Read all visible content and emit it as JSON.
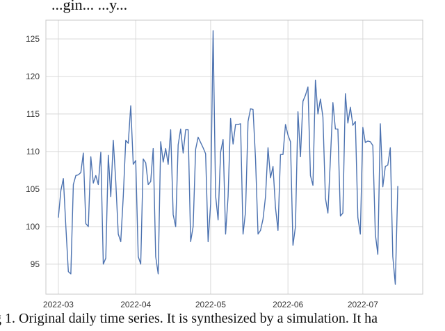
{
  "header_fragment": "...gin... ...y...",
  "caption": "g 1. Original daily time series. It is synthesized by a simulation. It ha",
  "chart_data": {
    "type": "line",
    "title": "",
    "xlabel": "",
    "ylabel": "",
    "x_tick_labels": [
      "2022-03",
      "2022-04",
      "2022-05",
      "2022-06",
      "2022-07"
    ],
    "x_tick_dates": [
      "2022-03-01",
      "2022-04-01",
      "2022-05-01",
      "2022-06-01",
      "2022-07-01"
    ],
    "y_ticks": [
      95,
      100,
      105,
      110,
      115,
      120,
      125
    ],
    "xlim": [
      "2022-02-24",
      "2022-07-25"
    ],
    "ylim": [
      91.0,
      127.5
    ],
    "grid": true,
    "line_color": "#4c72b0",
    "series": [
      {
        "x_start": "2022-03-01",
        "frequency": "daily",
        "values": [
          101.2,
          104.8,
          106.4,
          100.0,
          94.0,
          93.7,
          105.6,
          106.8,
          106.9,
          107.2,
          109.8,
          100.4,
          100.0,
          109.3,
          105.8,
          106.8,
          105.6,
          109.9,
          95.0,
          95.8,
          109.5,
          104.0,
          111.5,
          106.0,
          99.0,
          98.0,
          104.0,
          111.5,
          111.1,
          116.1,
          108.3,
          108.8,
          96.0,
          95.0,
          109.0,
          108.5,
          105.6,
          106.0,
          110.4,
          96.0,
          93.7,
          111.3,
          108.6,
          110.4,
          108.3,
          112.9,
          101.6,
          100.0,
          110.9,
          113.0,
          109.8,
          112.9,
          112.9,
          98.0,
          100.0,
          110.3,
          111.9,
          111.2,
          110.5,
          109.7,
          98.0,
          103.0,
          126.1,
          104.1,
          100.9,
          109.9,
          111.6,
          99.0,
          104.0,
          114.4,
          111.0,
          113.6,
          113.6,
          113.7,
          99.0,
          102.0,
          114.0,
          115.7,
          115.6,
          109.0,
          99.0,
          99.5,
          101.0,
          104.0,
          110.5,
          106.5,
          108.0,
          102.5,
          99.5,
          109.6,
          109.6,
          113.6,
          112.2,
          111.3,
          97.5,
          100.0,
          115.3,
          109.3,
          116.7,
          117.5,
          118.6,
          106.8,
          105.5,
          119.5,
          115.0,
          117.0,
          114.6,
          103.8,
          101.8,
          109.0,
          116.5,
          113.0,
          113.0,
          101.4,
          101.8,
          117.7,
          113.8,
          115.9,
          113.5,
          114.0,
          101.2,
          99.0,
          113.2,
          111.2,
          111.4,
          111.3,
          110.8,
          99.0,
          96.3,
          113.7,
          105.3,
          108.0,
          108.2,
          110.5,
          96.0,
          92.3,
          105.4
        ]
      }
    ]
  }
}
